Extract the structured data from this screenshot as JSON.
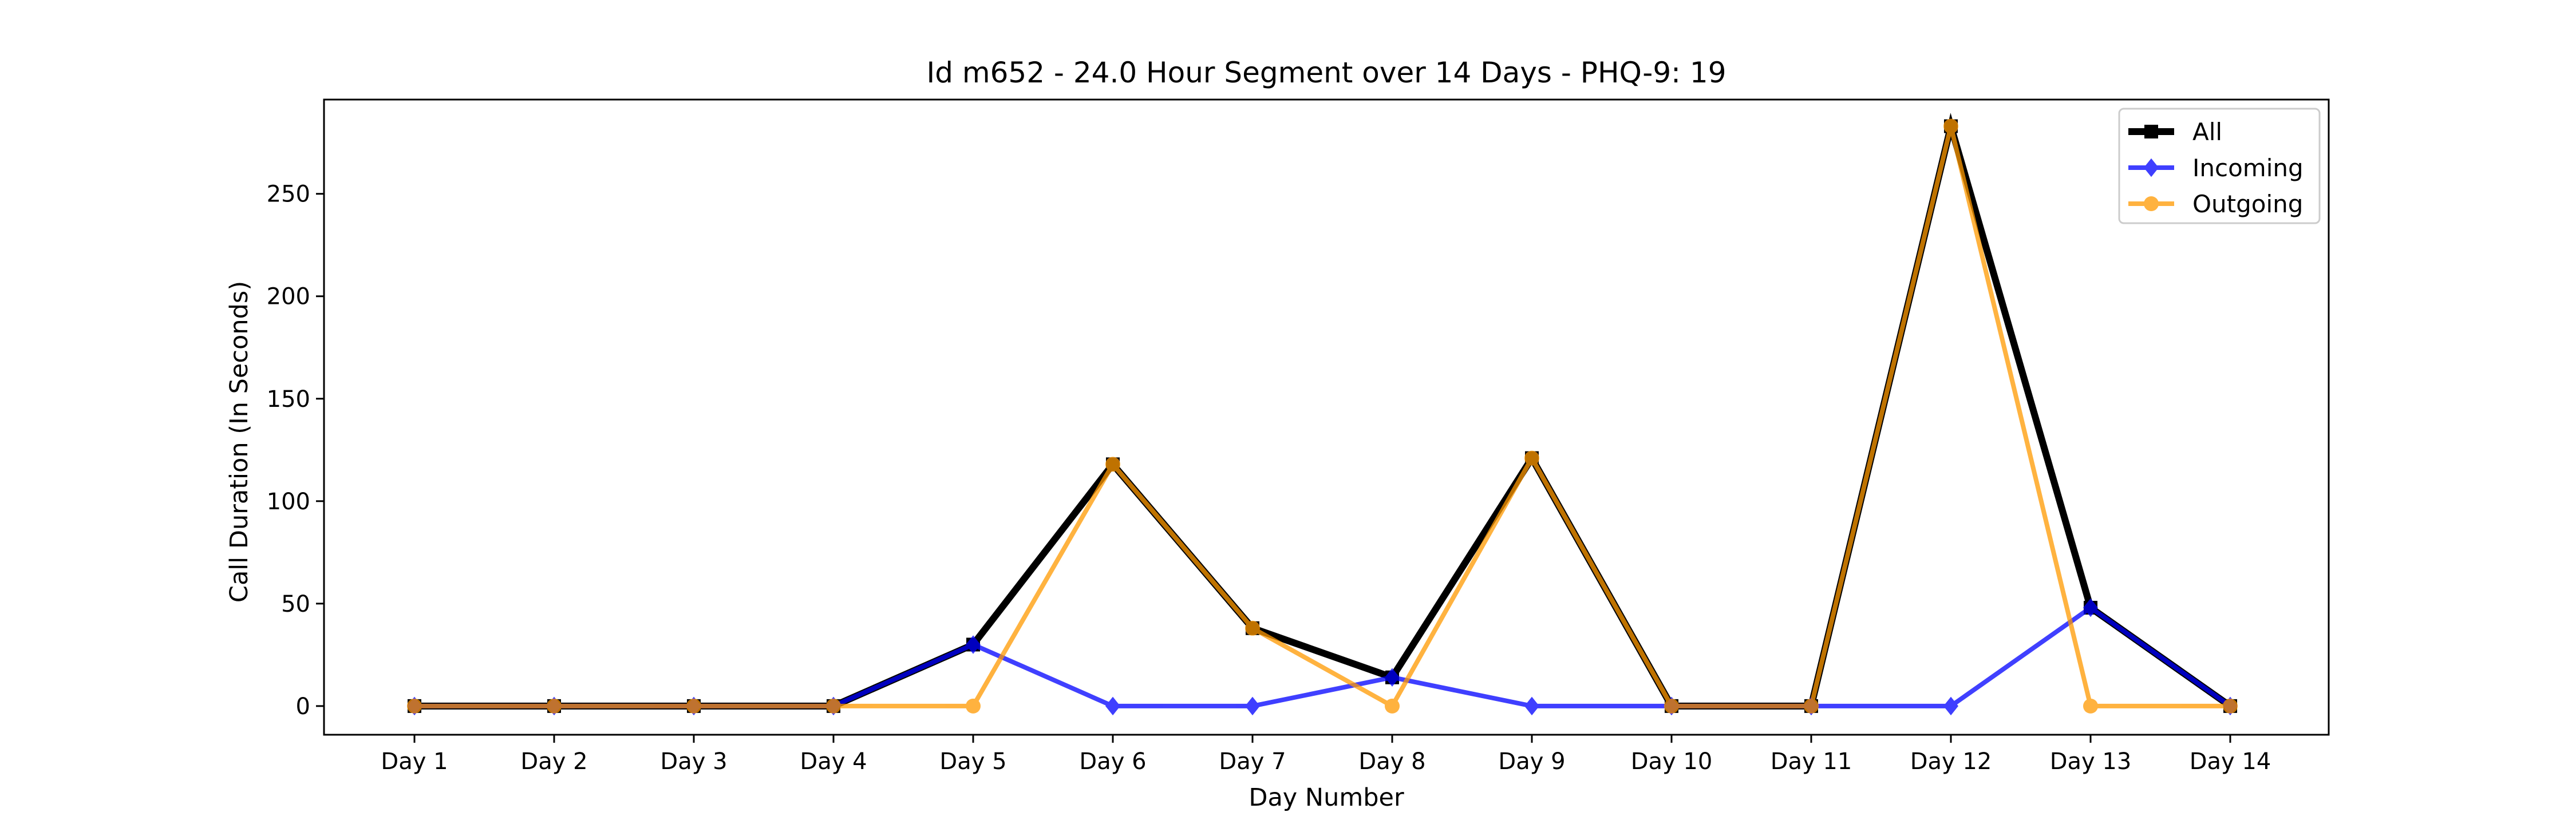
{
  "chart_data": {
    "type": "line",
    "title": "Id m652 - 24.0 Hour Segment over 14 Days - PHQ-9: 19",
    "xlabel": "Day Number",
    "ylabel": "Call Duration (In Seconds)",
    "categories": [
      "Day 1",
      "Day 2",
      "Day 3",
      "Day 4",
      "Day 5",
      "Day 6",
      "Day 7",
      "Day 8",
      "Day 9",
      "Day 10",
      "Day 11",
      "Day 12",
      "Day 13",
      "Day 14"
    ],
    "y_ticks": [
      0,
      50,
      100,
      150,
      200,
      250
    ],
    "ylim": [
      -14,
      296
    ],
    "grid": false,
    "legend_position": "top-right",
    "series": [
      {
        "name": "All",
        "color": "#000000",
        "marker": "square",
        "values": [
          0,
          0,
          0,
          0,
          30,
          118,
          38,
          14,
          121,
          0,
          0,
          283,
          48,
          0
        ]
      },
      {
        "name": "Incoming",
        "color": "#0000ff",
        "marker": "diamond",
        "values": [
          0,
          0,
          0,
          0,
          30,
          0,
          0,
          14,
          0,
          0,
          0,
          0,
          48,
          0
        ]
      },
      {
        "name": "Outgoing",
        "color": "#ff9900",
        "marker": "circle",
        "values": [
          0,
          0,
          0,
          0,
          0,
          118,
          38,
          0,
          121,
          0,
          0,
          283,
          0,
          0
        ]
      }
    ]
  }
}
